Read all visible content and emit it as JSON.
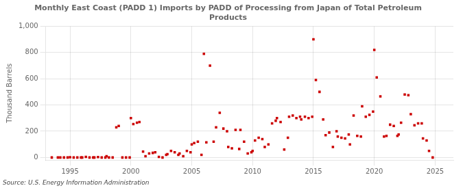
{
  "chart_data": {
    "type": "scatter",
    "title": "Monthly East Coast (PADD 1) Imports by PADD of Processing from Japan of Total Petroleum\nProducts",
    "ylabel": "Thousand Barrels",
    "source": "Source: U.S. Energy Information Administration",
    "color": "#cc0000",
    "marker": "square",
    "grid": true,
    "xlim": [
      1993.0,
      2026.5
    ],
    "ylim": [
      -20,
      1000
    ],
    "xticks": [
      1995,
      2000,
      2005,
      2010,
      2015,
      2020,
      2025
    ],
    "yticks": [
      0,
      200,
      400,
      600,
      800,
      {
        "value": 1000,
        "label": "1,000"
      }
    ],
    "x": [
      1993.5,
      1994.0,
      1994.2,
      1994.5,
      1994.8,
      1995.0,
      1995.3,
      1995.6,
      1995.9,
      1996.0,
      1996.3,
      1996.6,
      1996.9,
      1997.0,
      1997.3,
      1997.6,
      1997.9,
      1998.0,
      1998.2,
      1998.5,
      1998.8,
      1999.0,
      1999.3,
      1999.6,
      1999.9,
      2000.0,
      2000.2,
      2000.5,
      2000.7,
      2001.0,
      2001.2,
      2001.5,
      2001.8,
      2002.0,
      2002.3,
      2002.6,
      2002.9,
      2003.0,
      2003.3,
      2003.6,
      2003.9,
      2004.0,
      2004.3,
      2004.6,
      2004.9,
      2005.0,
      2005.2,
      2005.5,
      2005.8,
      2006.0,
      2006.2,
      2006.5,
      2006.8,
      2007.0,
      2007.3,
      2007.6,
      2007.9,
      2008.0,
      2008.3,
      2008.6,
      2008.9,
      2009.0,
      2009.3,
      2009.6,
      2009.9,
      2010.0,
      2010.2,
      2010.5,
      2010.8,
      2011.0,
      2011.3,
      2011.6,
      2011.9,
      2012.0,
      2012.3,
      2012.6,
      2012.9,
      2013.0,
      2013.3,
      2013.6,
      2013.9,
      2014.0,
      2014.3,
      2014.6,
      2014.9,
      2015.0,
      2015.2,
      2015.5,
      2015.8,
      2016.0,
      2016.3,
      2016.6,
      2016.9,
      2017.0,
      2017.3,
      2017.6,
      2017.9,
      2018.0,
      2018.3,
      2018.6,
      2018.9,
      2019.0,
      2019.3,
      2019.6,
      2019.9,
      2020.0,
      2020.2,
      2020.5,
      2020.8,
      2021.0,
      2021.3,
      2021.6,
      2021.9,
      2022.0,
      2022.2,
      2022.5,
      2022.8,
      2023.0,
      2023.3,
      2023.6,
      2023.9,
      2024.0,
      2024.3,
      2024.5,
      2024.8
    ],
    "values": [
      0,
      0,
      0,
      0,
      0,
      2,
      0,
      0,
      0,
      0,
      5,
      0,
      0,
      0,
      3,
      0,
      0,
      10,
      0,
      0,
      230,
      240,
      0,
      0,
      0,
      300,
      255,
      265,
      270,
      45,
      10,
      30,
      35,
      40,
      5,
      0,
      20,
      25,
      50,
      40,
      20,
      30,
      10,
      50,
      40,
      100,
      110,
      120,
      20,
      790,
      115,
      700,
      120,
      230,
      340,
      220,
      200,
      80,
      70,
      210,
      65,
      210,
      120,
      30,
      40,
      50,
      130,
      150,
      140,
      80,
      100,
      260,
      280,
      300,
      270,
      60,
      150,
      310,
      320,
      300,
      310,
      290,
      310,
      300,
      310,
      900,
      590,
      500,
      290,
      170,
      190,
      80,
      200,
      160,
      150,
      145,
      175,
      100,
      320,
      165,
      160,
      390,
      310,
      325,
      350,
      820,
      610,
      465,
      160,
      165,
      250,
      240,
      165,
      175,
      265,
      480,
      475,
      330,
      245,
      260,
      260,
      145,
      130,
      50,
      0
    ]
  }
}
